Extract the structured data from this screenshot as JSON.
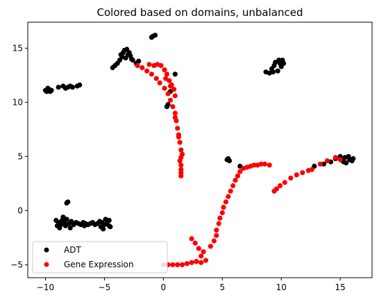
{
  "chart_data": {
    "type": "scatter",
    "title": "Colored based on domains, unbalanced",
    "xlabel": "",
    "ylabel": "",
    "xlim": [
      -11.5,
      17.7
    ],
    "ylim": [
      -6.2,
      17.4
    ],
    "xticks": [
      -10,
      -5,
      0,
      5,
      10,
      15
    ],
    "yticks": [
      -5,
      0,
      5,
      10,
      15
    ],
    "tick_labels": {
      "x": [
        "−10",
        "−5",
        "0",
        "5",
        "10",
        "15"
      ],
      "y": [
        "−5",
        "0",
        "5",
        "10",
        "15"
      ]
    },
    "grid": false,
    "legend": {
      "placement": "lower-left"
    },
    "series": [
      {
        "name": "ADT",
        "color": "#000000",
        "points": [
          [
            -9.9,
            11.0
          ],
          [
            -9.7,
            11.2
          ],
          [
            -10.0,
            11.1
          ],
          [
            -9.6,
            11.0
          ],
          [
            -9.8,
            11.3
          ],
          [
            -9.5,
            11.1
          ],
          [
            -8.9,
            11.4
          ],
          [
            -8.5,
            11.5
          ],
          [
            -8.1,
            11.4
          ],
          [
            -7.7,
            11.4
          ],
          [
            -7.3,
            11.5
          ],
          [
            -7.1,
            11.6
          ],
          [
            -8.3,
            11.3
          ],
          [
            -7.9,
            11.5
          ],
          [
            -4.3,
            13.2
          ],
          [
            -4.1,
            13.4
          ],
          [
            -3.9,
            13.6
          ],
          [
            -3.7,
            13.9
          ],
          [
            -3.5,
            14.2
          ],
          [
            -3.4,
            14.6
          ],
          [
            -3.3,
            14.8
          ],
          [
            -3.1,
            14.9
          ],
          [
            -2.9,
            14.6
          ],
          [
            -2.8,
            14.3
          ],
          [
            -3.2,
            14.1
          ],
          [
            -2.7,
            14.0
          ],
          [
            -2.6,
            13.9
          ],
          [
            -2.3,
            13.6
          ],
          [
            -2.1,
            13.8
          ],
          [
            -3.6,
            14.4
          ],
          [
            -3.0,
            14.4
          ],
          [
            -0.9,
            16.1
          ],
          [
            -0.7,
            16.2
          ],
          [
            -1.0,
            16.0
          ],
          [
            1.0,
            12.6
          ],
          [
            0.6,
            11.0
          ],
          [
            0.4,
            9.8
          ],
          [
            0.3,
            9.6
          ],
          [
            9.0,
            12.7
          ],
          [
            8.7,
            12.8
          ],
          [
            9.2,
            13.1
          ],
          [
            9.4,
            13.4
          ],
          [
            9.5,
            13.7
          ],
          [
            9.8,
            13.9
          ],
          [
            10.1,
            13.9
          ],
          [
            9.7,
            12.9
          ],
          [
            10.0,
            13.3
          ],
          [
            9.9,
            13.6
          ],
          [
            9.3,
            12.8
          ],
          [
            10.2,
            13.6
          ],
          [
            5.4,
            4.7
          ],
          [
            5.6,
            4.6
          ],
          [
            5.5,
            4.8
          ],
          [
            6.5,
            4.1
          ],
          [
            12.8,
            4.1
          ],
          [
            13.6,
            4.3
          ],
          [
            14.2,
            4.5
          ],
          [
            14.6,
            4.8
          ],
          [
            15.0,
            5.0
          ],
          [
            15.4,
            4.9
          ],
          [
            15.8,
            4.7
          ],
          [
            16.0,
            4.6
          ],
          [
            15.5,
            4.4
          ],
          [
            15.2,
            4.6
          ],
          [
            15.7,
            5.0
          ],
          [
            16.1,
            4.8
          ],
          [
            15.3,
            4.5
          ],
          [
            -8.1,
            0.8
          ],
          [
            -8.2,
            0.7
          ],
          [
            -9.1,
            -0.9
          ],
          [
            -8.9,
            -1.1
          ],
          [
            -8.7,
            -1.3
          ],
          [
            -8.6,
            -0.9
          ],
          [
            -8.4,
            -1.1
          ],
          [
            -8.3,
            -1.4
          ],
          [
            -8.0,
            -1.2
          ],
          [
            -7.8,
            -1.0
          ],
          [
            -7.6,
            -1.3
          ],
          [
            -7.4,
            -1.1
          ],
          [
            -7.2,
            -1.2
          ],
          [
            -7.0,
            -1.3
          ],
          [
            -6.8,
            -1.1
          ],
          [
            -6.6,
            -1.2
          ],
          [
            -6.4,
            -1.3
          ],
          [
            -6.2,
            -1.2
          ],
          [
            -6.0,
            -1.1
          ],
          [
            -5.8,
            -1.3
          ],
          [
            -5.6,
            -1.2
          ],
          [
            -5.4,
            -1.0
          ],
          [
            -5.2,
            -1.1
          ],
          [
            -5.0,
            -1.3
          ],
          [
            -4.8,
            -1.2
          ],
          [
            -4.6,
            -0.9
          ],
          [
            -4.5,
            -1.5
          ],
          [
            -5.1,
            -1.7
          ],
          [
            -8.8,
            -1.6
          ],
          [
            -9.0,
            -1.4
          ],
          [
            -8.5,
            -0.6
          ],
          [
            -7.9,
            -1.6
          ],
          [
            -4.9,
            -0.8
          ],
          [
            -4.6,
            -1.4
          ],
          [
            -5.3,
            -1.5
          ],
          [
            -6.7,
            -1.4
          ],
          [
            -8.2,
            -0.8
          ]
        ]
      },
      {
        "name": "Gene Expression",
        "color": "#ff0000",
        "points": [
          [
            -2.2,
            13.4
          ],
          [
            -1.8,
            13.2
          ],
          [
            -1.4,
            12.9
          ],
          [
            -1.0,
            12.6
          ],
          [
            -0.6,
            12.2
          ],
          [
            -0.3,
            11.8
          ],
          [
            0.1,
            11.3
          ],
          [
            0.4,
            10.8
          ],
          [
            0.6,
            10.2
          ],
          [
            0.8,
            9.6
          ],
          [
            1.0,
            9.0
          ],
          [
            1.1,
            8.3
          ],
          [
            1.2,
            7.6
          ],
          [
            1.3,
            7.0
          ],
          [
            1.4,
            6.3
          ],
          [
            1.5,
            5.6
          ],
          [
            1.5,
            4.9
          ],
          [
            1.5,
            4.2
          ],
          [
            1.5,
            3.5
          ],
          [
            1.6,
            5.2
          ],
          [
            1.4,
            4.6
          ],
          [
            1.5,
            3.8
          ],
          [
            1.5,
            3.2
          ],
          [
            1.3,
            6.8
          ],
          [
            1.0,
            8.6
          ],
          [
            -1.2,
            13.5
          ],
          [
            -0.8,
            13.4
          ],
          [
            -0.5,
            13.5
          ],
          [
            -0.2,
            13.4
          ],
          [
            0.1,
            13.0
          ],
          [
            0.3,
            12.6
          ],
          [
            0.5,
            12.0
          ],
          [
            0.7,
            11.6
          ],
          [
            0.9,
            11.2
          ],
          [
            1.0,
            10.6
          ],
          [
            0.6,
            11.5
          ],
          [
            0.2,
            12.2
          ],
          [
            0.0,
            -5.0
          ],
          [
            0.4,
            -5.0
          ],
          [
            0.8,
            -5.0
          ],
          [
            1.2,
            -5.0
          ],
          [
            1.6,
            -5.0
          ],
          [
            2.0,
            -4.9
          ],
          [
            2.4,
            -4.8
          ],
          [
            2.8,
            -4.7
          ],
          [
            3.2,
            -4.8
          ],
          [
            3.6,
            -4.6
          ],
          [
            3.4,
            -3.8
          ],
          [
            3.2,
            -4.2
          ],
          [
            3.0,
            -3.5
          ],
          [
            2.7,
            -3.0
          ],
          [
            2.4,
            -2.6
          ],
          [
            4.0,
            -3.3
          ],
          [
            4.3,
            -2.8
          ],
          [
            4.5,
            -2.3
          ],
          [
            4.5,
            -1.8
          ],
          [
            4.7,
            -1.2
          ],
          [
            4.8,
            -0.7
          ],
          [
            5.0,
            -0.2
          ],
          [
            5.1,
            0.3
          ],
          [
            5.3,
            0.8
          ],
          [
            5.5,
            1.3
          ],
          [
            5.7,
            1.8
          ],
          [
            5.9,
            2.3
          ],
          [
            6.1,
            2.8
          ],
          [
            6.3,
            3.2
          ],
          [
            6.5,
            3.6
          ],
          [
            6.8,
            3.9
          ],
          [
            7.1,
            4.0
          ],
          [
            7.4,
            4.1
          ],
          [
            7.7,
            4.2
          ],
          [
            8.0,
            4.2
          ],
          [
            8.3,
            4.3
          ],
          [
            8.6,
            4.3
          ],
          [
            9.0,
            4.2
          ],
          [
            9.4,
            1.8
          ],
          [
            9.6,
            2.0
          ],
          [
            9.9,
            2.3
          ],
          [
            10.3,
            2.6
          ],
          [
            10.8,
            3.0
          ],
          [
            11.3,
            3.3
          ],
          [
            11.8,
            3.5
          ],
          [
            12.3,
            3.7
          ],
          [
            12.6,
            3.8
          ],
          [
            13.3,
            4.3
          ],
          [
            13.9,
            4.6
          ],
          [
            14.6,
            4.9
          ],
          [
            15.0,
            4.7
          ]
        ]
      }
    ]
  }
}
